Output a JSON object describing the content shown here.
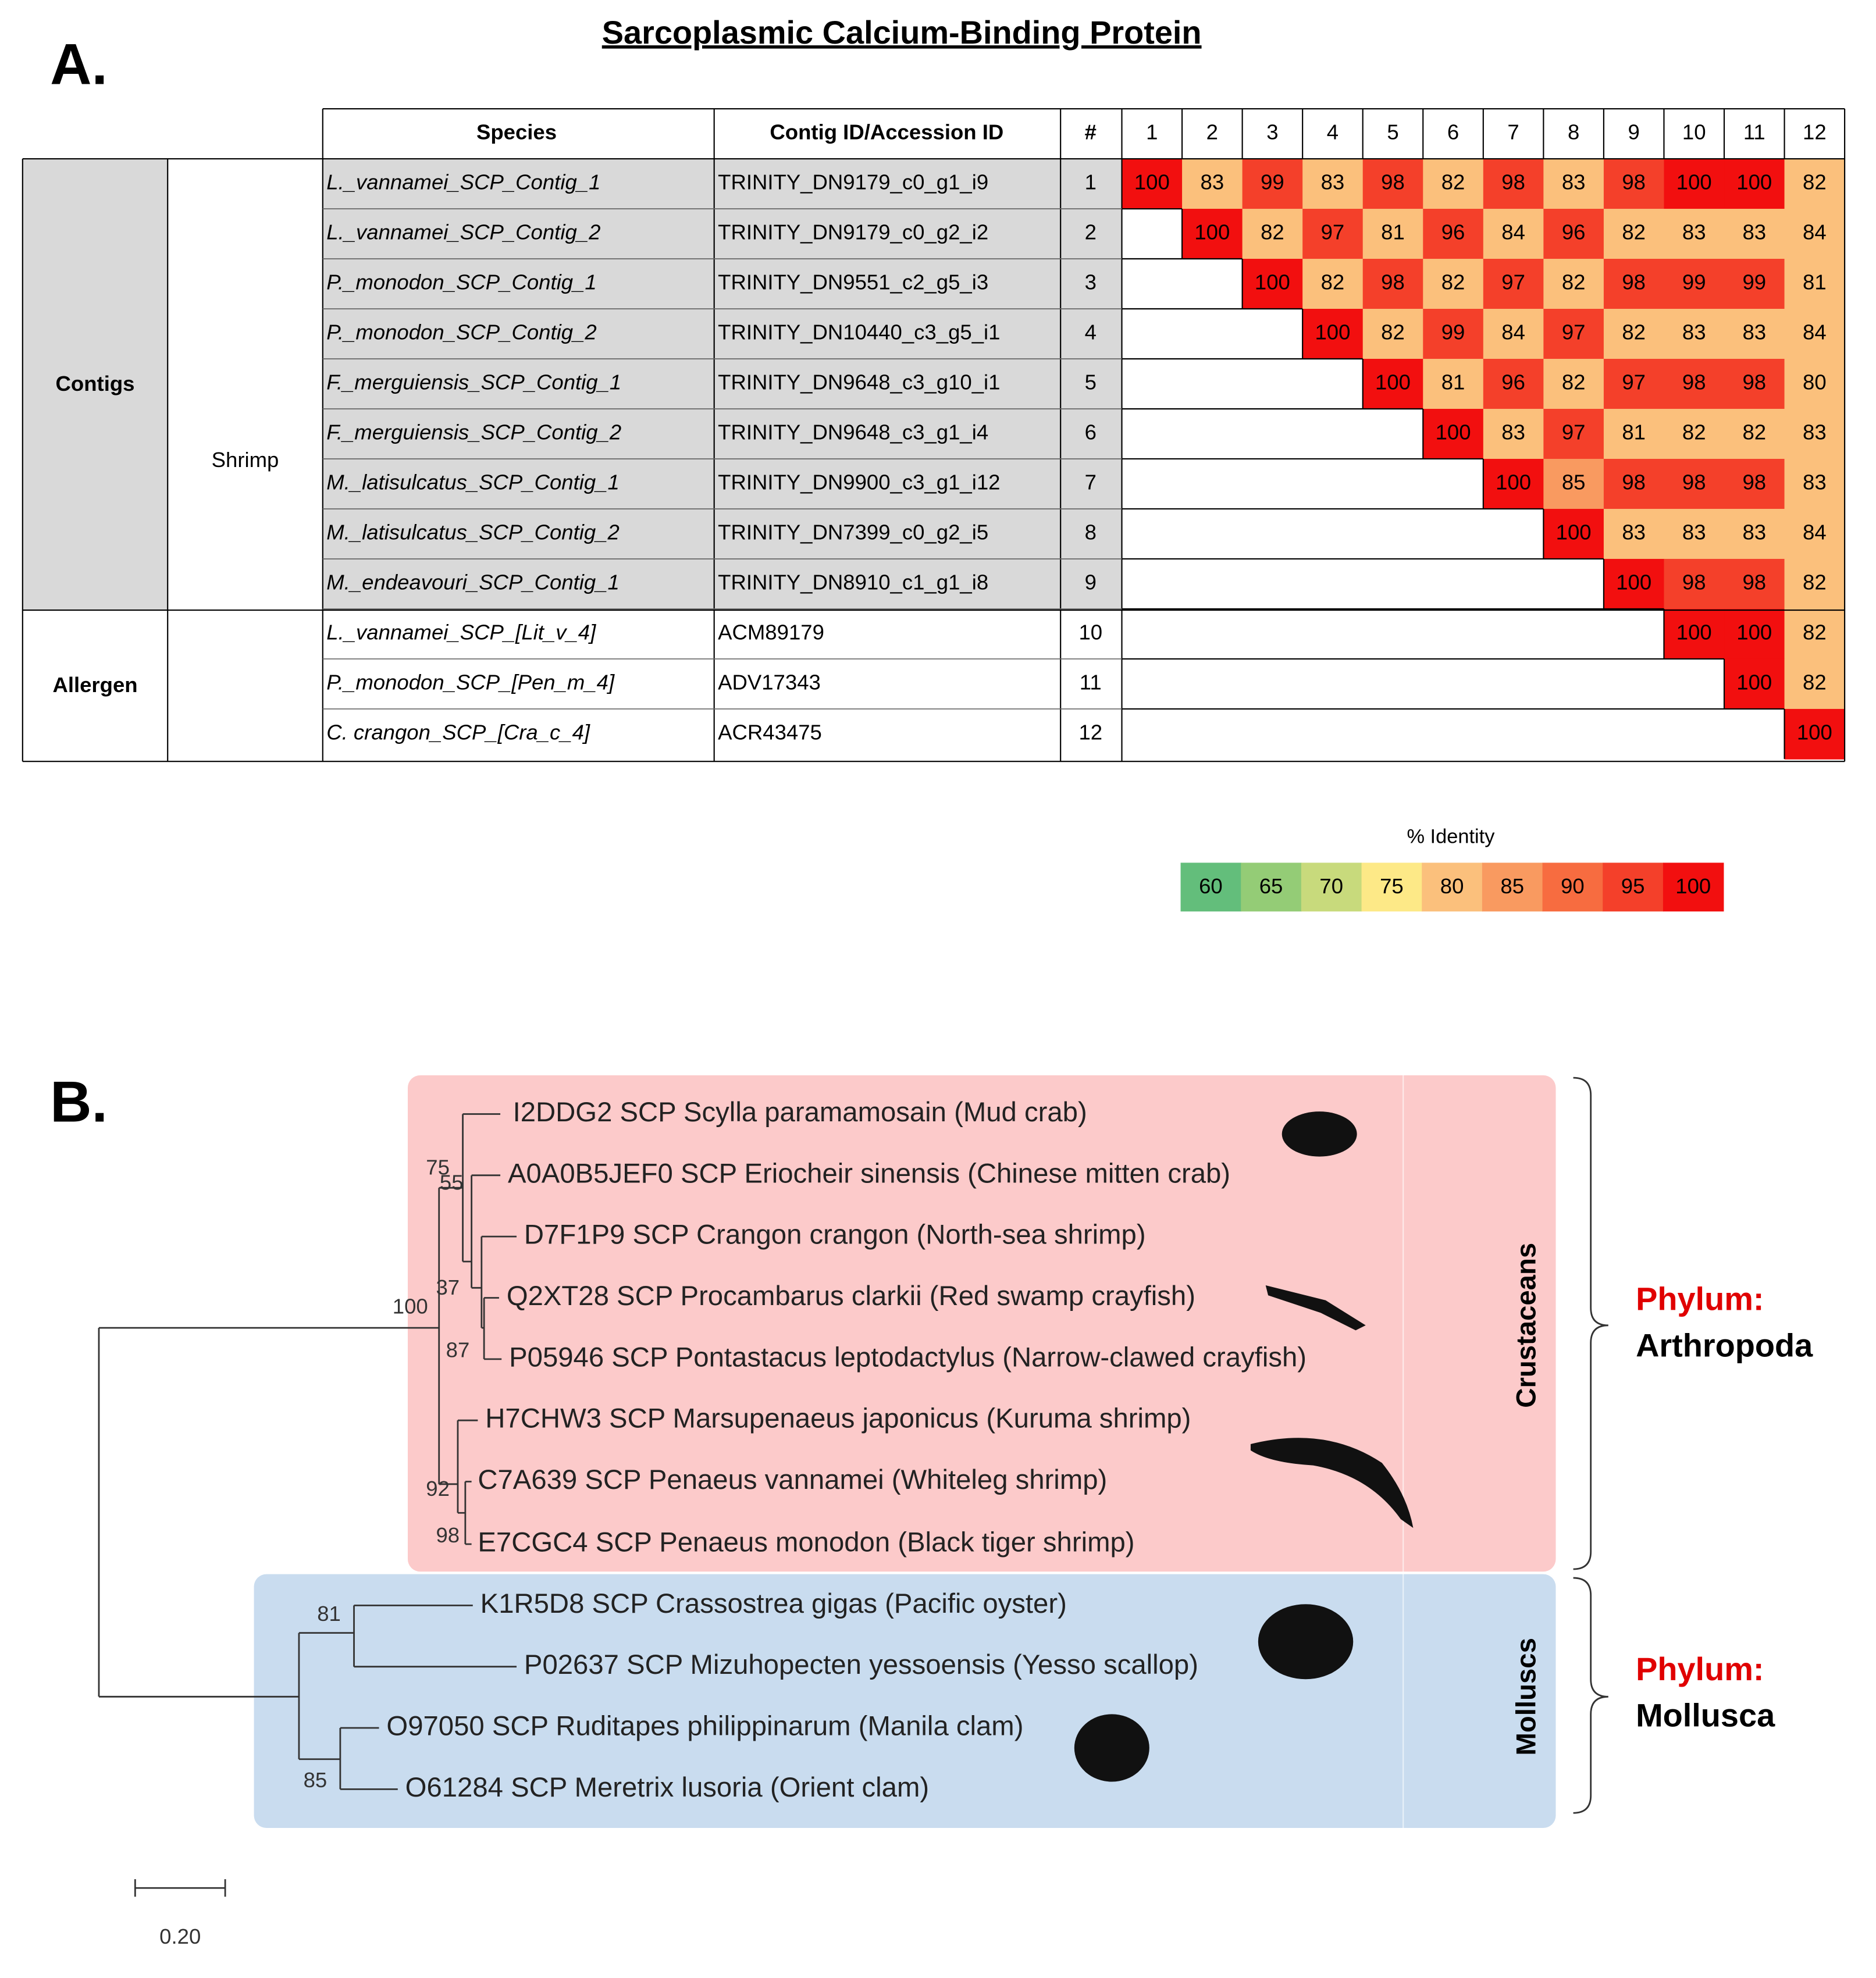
{
  "title": "Sarcoplasmic Calcium-Binding Protein",
  "panel_a": {
    "label": "A.",
    "headers": [
      "Species",
      "Contig ID/Accession ID",
      "#"
    ],
    "columns": [
      1,
      2,
      3,
      4,
      5,
      6,
      7,
      8,
      9,
      10,
      11,
      12
    ],
    "groups": [
      "Contigs",
      "Allergen"
    ],
    "subgroup": "Shrimp",
    "rows": [
      {
        "species": "L._vannamei_SCP_Contig_1",
        "id": "TRINITY_DN9179_c0_g1_i9",
        "number": 1,
        "values": [
          100,
          83,
          99,
          83,
          98,
          82,
          98,
          83,
          98,
          100,
          100,
          82
        ]
      },
      {
        "species": "L._vannamei_SCP_Contig_2",
        "id": "TRINITY_DN9179_c0_g2_i2",
        "number": 2,
        "values": [
          null,
          100,
          82,
          97,
          81,
          96,
          84,
          96,
          82,
          83,
          83,
          84
        ]
      },
      {
        "species": "P._monodon_SCP_Contig_1",
        "id": "TRINITY_DN9551_c2_g5_i3",
        "number": 3,
        "values": [
          null,
          null,
          100,
          82,
          98,
          82,
          97,
          82,
          98,
          99,
          99,
          81
        ]
      },
      {
        "species": "P._monodon_SCP_Contig_2",
        "id": "TRINITY_DN10440_c3_g5_i1",
        "number": 4,
        "values": [
          null,
          null,
          null,
          100,
          82,
          99,
          84,
          97,
          82,
          83,
          83,
          84
        ]
      },
      {
        "species": "F._merguiensis_SCP_Contig_1",
        "id": "TRINITY_DN9648_c3_g10_i1",
        "number": 5,
        "values": [
          null,
          null,
          null,
          null,
          100,
          81,
          96,
          82,
          97,
          98,
          98,
          80
        ]
      },
      {
        "species": "F._merguiensis_SCP_Contig_2",
        "id": "TRINITY_DN9648_c3_g1_i4",
        "number": 6,
        "values": [
          null,
          null,
          null,
          null,
          null,
          100,
          83,
          97,
          81,
          82,
          82,
          83
        ]
      },
      {
        "species": "M._latisulcatus_SCP_Contig_1",
        "id": "TRINITY_DN9900_c3_g1_i12",
        "number": 7,
        "values": [
          null,
          null,
          null,
          null,
          null,
          null,
          100,
          85,
          98,
          98,
          98,
          83
        ]
      },
      {
        "species": "M._latisulcatus_SCP_Contig_2",
        "id": "TRINITY_DN7399_c0_g2_i5",
        "number": 8,
        "values": [
          null,
          null,
          null,
          null,
          null,
          null,
          null,
          100,
          83,
          83,
          83,
          84
        ]
      },
      {
        "species": "M._endeavouri_SCP_Contig_1",
        "id": "TRINITY_DN8910_c1_g1_i8",
        "number": 9,
        "values": [
          null,
          null,
          null,
          null,
          null,
          null,
          null,
          null,
          100,
          98,
          98,
          82
        ]
      },
      {
        "species": "L._vannamei_SCP_[Lit_v_4]",
        "id": "ACM89179",
        "number": 10,
        "values": [
          null,
          null,
          null,
          null,
          null,
          null,
          null,
          null,
          null,
          100,
          100,
          82
        ]
      },
      {
        "species": "P._monodon_SCP_[Pen_m_4]",
        "id": "ADV17343",
        "number": 11,
        "values": [
          null,
          null,
          null,
          null,
          null,
          null,
          null,
          null,
          null,
          null,
          100,
          82
        ]
      },
      {
        "species": "C. crangon_SCP_[Cra_c_4]",
        "id": "ACR43475",
        "number": 12,
        "values": [
          null,
          null,
          null,
          null,
          null,
          null,
          null,
          null,
          null,
          null,
          null,
          100
        ]
      }
    ],
    "legend": {
      "title": "% Identity",
      "bins": [
        {
          "value": 60,
          "color": "#63be7b"
        },
        {
          "value": 65,
          "color": "#94cc76"
        },
        {
          "value": 70,
          "color": "#c8da7c"
        },
        {
          "value": 75,
          "color": "#fde987"
        },
        {
          "value": 80,
          "color": "#fbc07c"
        },
        {
          "value": 85,
          "color": "#f99a60"
        },
        {
          "value": 90,
          "color": "#f76c40"
        },
        {
          "value": 95,
          "color": "#f4402a"
        },
        {
          "value": 100,
          "color": "#f20f0f"
        }
      ]
    }
  },
  "panel_b": {
    "label": "B.",
    "leaves": [
      "I2DDG2 SCP Scylla paramamosain (Mud crab)",
      "A0A0B5JEF0 SCP Eriocheir sinensis (Chinese mitten crab)",
      "D7F1P9 SCP Crangon crangon (North-sea shrimp)",
      "Q2XT28 SCP Procambarus clarkii (Red swamp crayfish)",
      "P05946 SCP Pontastacus leptodactylus (Narrow-clawed crayfish)",
      "H7CHW3 SCP Marsupenaeus japonicus (Kuruma shrimp)",
      "C7A639 SCP Penaeus vannamei (Whiteleg shrimp)",
      "E7CGC4 SCP Penaeus monodon (Black tiger shrimp)",
      "K1R5D8 SCP Crassostrea gigas (Pacific oyster)",
      "P02637 SCP Mizuhopecten yessoensis (Yesso scallop)",
      "O97050 SCP Ruditapes philippinarum (Manila clam)",
      "O61284 SCP Meretrix lusoria (Orient clam)"
    ],
    "bootstrap": [
      75,
      55,
      37,
      100,
      87,
      92,
      98,
      81,
      85
    ],
    "clades": [
      "Crustaceans",
      "Molluscs"
    ],
    "phyla": [
      {
        "prefix": "Phylum:",
        "name": "Arthropoda"
      },
      {
        "prefix": "Phylum:",
        "name": "Mollusca"
      }
    ],
    "scale_bar": "0.20"
  }
}
